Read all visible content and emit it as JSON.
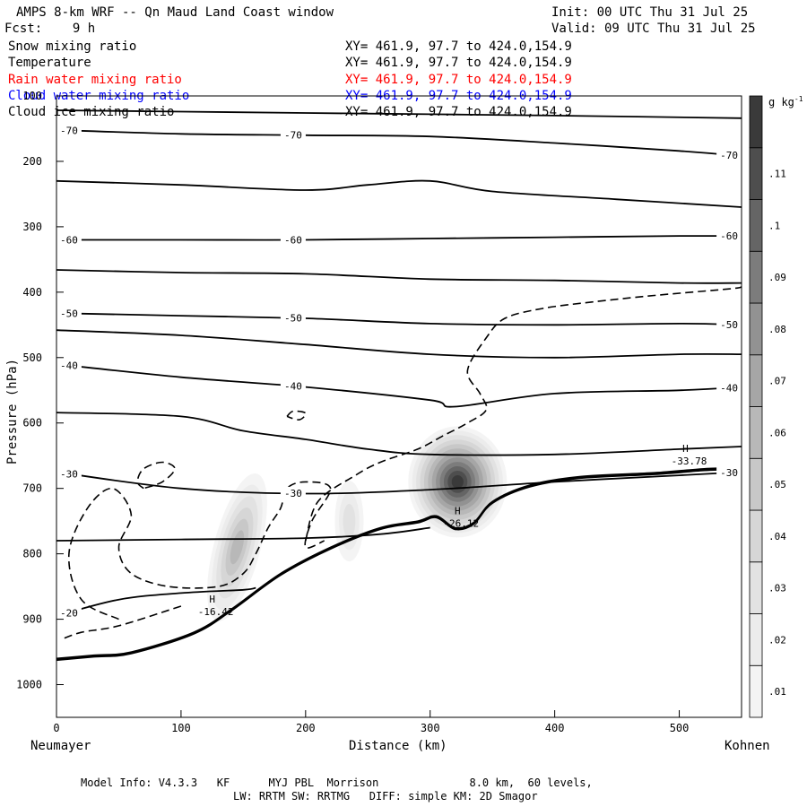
{
  "header": {
    "title": "AMPS 8-km WRF -- Qn Maud Land Coast window",
    "init": "Init: 00 UTC Thu 31 Jul 25",
    "fcst": "Fcst:    9 h",
    "valid": "Valid: 09 UTC Thu 31 Jul 25"
  },
  "fields": [
    {
      "name": "Snow mixing ratio",
      "xy": "XY= 461.9, 97.7 to 424.0,154.9",
      "color": "#000000"
    },
    {
      "name": "Temperature",
      "xy": "XY= 461.9, 97.7 to 424.0,154.9",
      "color": "#000000"
    },
    {
      "name": "Rain water mixing ratio",
      "xy": "XY= 461.9, 97.7 to 424.0,154.9",
      "color": "#ff0000"
    },
    {
      "name": "Cloud water mixing ratio",
      "xy": "XY= 461.9, 97.7 to 424.0,154.9",
      "color": "#0000ff"
    },
    {
      "name": "Cloud ice mixing ratio",
      "xy": "XY= 461.9, 97.7 to 424.0,154.9",
      "color": "#000000"
    }
  ],
  "footer": {
    "line1": "Model Info: V4.3.3   KF      MYJ PBL  Morrison              8.0 km,  60 levels,",
    "line2": "LW: RRTM SW: RRTMG   DIFF: simple KM: 2D Smagor"
  },
  "chart_data": {
    "type": "cross-section",
    "xlabel": "Distance (km)",
    "ylabel": "Pressure (hPa)",
    "x_left_label": "Neumayer",
    "x_right_label": "Kohnen",
    "xlim": [
      0,
      550
    ],
    "ylim": [
      1050,
      100
    ],
    "xticks": [
      0,
      100,
      200,
      300,
      400,
      500
    ],
    "yticks": [
      100,
      200,
      300,
      400,
      500,
      600,
      700,
      800,
      900,
      1000
    ],
    "colorbar": {
      "unit": "g kg",
      "unit_sup": "-1",
      "levels": [
        ".01",
        ".02",
        ".03",
        ".04",
        ".05",
        ".06",
        ".07",
        ".08",
        ".09",
        ".1",
        ".11"
      ],
      "colors": [
        "#f4f4f4",
        "#ececec",
        "#e2e2e2",
        "#d6d6d6",
        "#c8c8c8",
        "#b8b8b8",
        "#a6a6a6",
        "#929292",
        "#7c7c7c",
        "#656565",
        "#4e4e4e",
        "#3a3a3a"
      ]
    },
    "isotherms": [
      {
        "label": "-70",
        "points": [
          [
            0,
            152
          ],
          [
            100,
            158
          ],
          [
            200,
            160
          ],
          [
            300,
            162
          ],
          [
            400,
            172
          ],
          [
            500,
            184
          ],
          [
            550,
            192
          ]
        ]
      },
      {
        "label": "-60",
        "points": [
          [
            0,
            320
          ],
          [
            100,
            320
          ],
          [
            200,
            320
          ],
          [
            300,
            318
          ],
          [
            400,
            316
          ],
          [
            500,
            314
          ],
          [
            550,
            314
          ]
        ]
      },
      {
        "label": "-50",
        "points": [
          [
            0,
            432
          ],
          [
            100,
            436
          ],
          [
            200,
            440
          ],
          [
            300,
            448
          ],
          [
            400,
            450
          ],
          [
            500,
            448
          ],
          [
            550,
            450
          ]
        ]
      },
      {
        "label": "-40",
        "points": [
          [
            0,
            510
          ],
          [
            100,
            530
          ],
          [
            200,
            545
          ],
          [
            300,
            565
          ],
          [
            320,
            575
          ],
          [
            400,
            555
          ],
          [
            500,
            550
          ],
          [
            550,
            545
          ]
        ]
      },
      {
        "label": "-30",
        "points": [
          [
            0,
            675
          ],
          [
            100,
            700
          ],
          [
            200,
            708
          ],
          [
            300,
            702
          ],
          [
            400,
            690
          ],
          [
            500,
            680
          ],
          [
            550,
            675
          ]
        ]
      },
      {
        "label": "-20",
        "points": [
          [
            0,
            895
          ],
          [
            50,
            870
          ],
          [
            100,
            860
          ],
          [
            150,
            855
          ],
          [
            160,
            852
          ]
        ]
      }
    ],
    "extra_contours_unlabeled": [
      {
        "points": [
          [
            0,
            122
          ],
          [
            100,
            124
          ],
          [
            200,
            126
          ],
          [
            300,
            128
          ],
          [
            400,
            130
          ],
          [
            550,
            134
          ]
        ]
      },
      {
        "points": [
          [
            0,
            230
          ],
          [
            100,
            236
          ],
          [
            200,
            244
          ],
          [
            250,
            236
          ],
          [
            300,
            230
          ],
          [
            350,
            246
          ],
          [
            450,
            258
          ],
          [
            550,
            270
          ]
        ]
      },
      {
        "points": [
          [
            0,
            366
          ],
          [
            100,
            370
          ],
          [
            200,
            372
          ],
          [
            300,
            380
          ],
          [
            400,
            382
          ],
          [
            500,
            386
          ],
          [
            550,
            386
          ]
        ]
      },
      {
        "points": [
          [
            0,
            458
          ],
          [
            100,
            466
          ],
          [
            200,
            480
          ],
          [
            300,
            495
          ],
          [
            400,
            500
          ],
          [
            500,
            495
          ],
          [
            550,
            495
          ]
        ]
      },
      {
        "points": [
          [
            0,
            584
          ],
          [
            100,
            590
          ],
          [
            150,
            612
          ],
          [
            200,
            625
          ],
          [
            250,
            640
          ],
          [
            300,
            648
          ],
          [
            400,
            648
          ],
          [
            500,
            640
          ],
          [
            550,
            636
          ]
        ]
      },
      {
        "points": [
          [
            0,
            780
          ],
          [
            100,
            778
          ],
          [
            200,
            776
          ],
          [
            260,
            770
          ],
          [
            300,
            760
          ]
        ]
      }
    ],
    "highs": [
      {
        "label": "H",
        "value": "-16.42",
        "x": 125,
        "p": 880
      },
      {
        "label": "H",
        "value": "-26.12",
        "x": 322,
        "p": 745
      },
      {
        "label": "H",
        "value": "-33.78",
        "x": 505,
        "p": 650
      }
    ],
    "mixing_ratio_maxima": [
      {
        "x": 145,
        "p": 790,
        "max": 0.06
      },
      {
        "x": 235,
        "p": 750,
        "max": 0.03
      },
      {
        "x": 322,
        "p": 690,
        "max": 0.12
      }
    ],
    "terrain": [
      [
        0,
        960
      ],
      [
        30,
        955
      ],
      [
        60,
        950
      ],
      [
        110,
        920
      ],
      [
        140,
        885
      ],
      [
        180,
        830
      ],
      [
        220,
        790
      ],
      [
        260,
        760
      ],
      [
        290,
        750
      ],
      [
        305,
        742
      ],
      [
        320,
        760
      ],
      [
        335,
        752
      ],
      [
        350,
        720
      ],
      [
        380,
        695
      ],
      [
        420,
        682
      ],
      [
        480,
        676
      ],
      [
        520,
        670
      ],
      [
        550,
        668
      ]
    ]
  }
}
